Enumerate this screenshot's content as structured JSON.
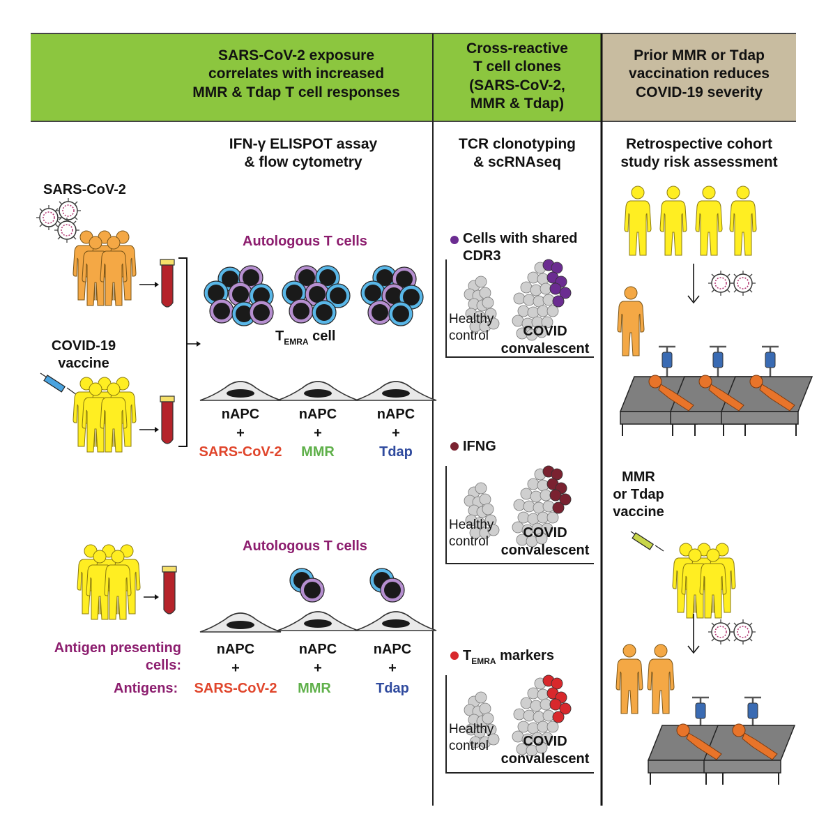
{
  "header": {
    "panel1_title": [
      "SARS-CoV-2 exposure",
      "correlates with increased",
      "MMR & Tdap T cell responses"
    ],
    "panel2_title": [
      "Cross-reactive",
      "T cell clones",
      "(SARS-CoV-2,",
      "MMR & Tdap)"
    ],
    "panel3_title": [
      "Prior MMR or Tdap",
      "vaccination reduces",
      "COVID-19 severity"
    ]
  },
  "left": {
    "assay_title": [
      "IFN-γ ELISPOT assay",
      "& flow cytometry"
    ],
    "sars_label": "SARS-CoV-2",
    "vaccine_label": [
      "COVID-19",
      "vaccine"
    ],
    "autologous_top": "Autologous T cells",
    "temra_T": "T",
    "temra_sub": "EMRA",
    "temra_cell": "cell",
    "napc": "nAPC",
    "plus": "+",
    "antigens": [
      "SARS-CoV-2",
      "MMR",
      "Tdap"
    ],
    "autologous_bottom": "Autologous T cells",
    "apc_label": [
      "Antigen presenting",
      "cells:"
    ],
    "antigens_label": "Antigens:"
  },
  "middle": {
    "title": [
      "TCR clonotyping",
      "& scRNAseq"
    ],
    "plot1_legend": [
      "Cells with shared",
      "CDR3"
    ],
    "plot2_legend": "IFNG",
    "plot3_legend_T": "T",
    "plot3_legend_sub": "EMRA",
    "plot3_legend_rest": "markers",
    "healthy": [
      "Healthy",
      "control"
    ],
    "covid": [
      "COVID",
      "convalescent"
    ]
  },
  "right": {
    "title": [
      "Retrospective cohort",
      "study risk assessment"
    ],
    "vaccine_label": [
      "MMR",
      "or Tdap",
      "vaccine"
    ]
  },
  "colors": {
    "green_header": "#8cc63f",
    "tan_header": "#c8bca0",
    "orange_person": "#f4a845",
    "yellow_person": "#ffee22",
    "tube_red": "#b5232a",
    "purple": "#6b2c91",
    "maroon": "#7a2230",
    "red_dot": "#d8282c",
    "light_blue": "#59b7e8"
  }
}
